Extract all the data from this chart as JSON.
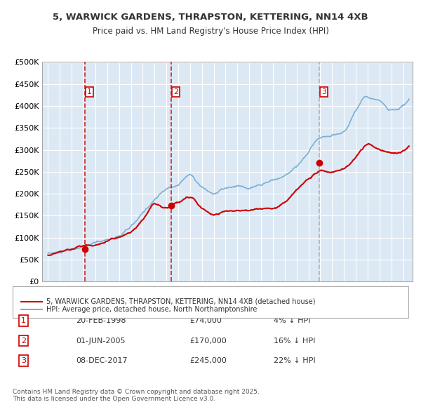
{
  "title1": "5, WARWICK GARDENS, THRAPSTON, KETTERING, NN14 4XB",
  "title2": "Price paid vs. HM Land Registry's House Price Index (HPI)",
  "bg_color": "#dce9f5",
  "plot_bg": "#dce9f5",
  "hpi_color": "#7ab0d4",
  "price_color": "#cc0000",
  "sale_marker_color": "#cc0000",
  "vline_colors": [
    "#cc0000",
    "#cc0000",
    "#aaaaaa"
  ],
  "ylim": [
    0,
    500000
  ],
  "yticks": [
    0,
    50000,
    100000,
    150000,
    200000,
    250000,
    300000,
    350000,
    400000,
    450000,
    500000
  ],
  "ytick_labels": [
    "£0",
    "£50K",
    "£100K",
    "£150K",
    "£200K",
    "£250K",
    "£300K",
    "£350K",
    "£400K",
    "£450K",
    "£500K"
  ],
  "sales": [
    {
      "date_num": 1998.13,
      "price": 74000,
      "label": "1",
      "vline_style": "dashed",
      "vline_color": "#cc0000"
    },
    {
      "date_num": 2005.42,
      "price": 170000,
      "label": "2",
      "vline_style": "dashed",
      "vline_color": "#cc0000"
    },
    {
      "date_num": 2017.93,
      "price": 245000,
      "label": "3",
      "vline_style": "dashed",
      "vline_color": "#aaaaaa"
    }
  ],
  "sale_table": [
    {
      "num": "1",
      "date": "20-FEB-1998",
      "price": "£74,000",
      "pct": "4% ↓ HPI"
    },
    {
      "num": "2",
      "date": "01-JUN-2005",
      "price": "£170,000",
      "pct": "16% ↓ HPI"
    },
    {
      "num": "3",
      "date": "08-DEC-2017",
      "price": "£245,000",
      "pct": "22% ↓ HPI"
    }
  ],
  "legend_entries": [
    "5, WARWICK GARDENS, THRAPSTON, KETTERING, NN14 4XB (detached house)",
    "HPI: Average price, detached house, North Northamptonshire"
  ],
  "footer": "Contains HM Land Registry data © Crown copyright and database right 2025.\nThis data is licensed under the Open Government Licence v3.0.",
  "xlim_start": 1994.5,
  "xlim_end": 2025.8
}
